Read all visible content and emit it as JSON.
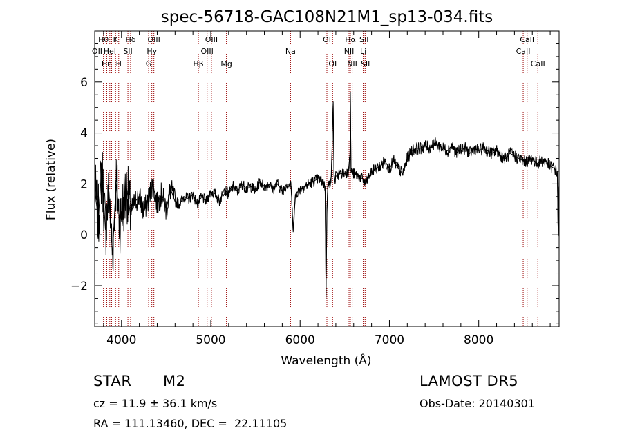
{
  "chart_data": {
    "type": "line",
    "title": "spec-56718-GAC108N21M1_sp13-034.fits",
    "xlabel": "Wavelength (Å)",
    "ylabel": "Flux (relative)",
    "xlim": [
      3700,
      8900
    ],
    "ylim": [
      -3.6,
      8.0
    ],
    "xticks": [
      4000,
      5000,
      6000,
      7000,
      8000
    ],
    "yticks": [
      -2,
      0,
      2,
      4,
      6
    ],
    "grid": false,
    "line_color": "#000000",
    "line_marker_color": "#990000",
    "series": [
      {
        "x": [
          3700,
          3740,
          3780,
          3820,
          3860,
          3900,
          3940,
          3980,
          4020,
          4060,
          4100,
          4150,
          4200,
          4250,
          4300,
          4350,
          4400,
          4450,
          4500,
          4550,
          4600,
          4650,
          4700,
          4750,
          4800,
          4850,
          4900,
          4950,
          5000,
          5050,
          5100,
          5150,
          5200,
          5250,
          5300,
          5350,
          5400,
          5450,
          5500,
          5550,
          5600,
          5650,
          5700,
          5750,
          5800,
          5850,
          5900,
          5920,
          5950,
          6000,
          6050,
          6100,
          6150,
          6200,
          6250,
          6280,
          6290,
          6300,
          6310,
          6330,
          6350,
          6370,
          6380,
          6390,
          6400,
          6450,
          6500,
          6540,
          6560,
          6563,
          6570,
          6600,
          6650,
          6700,
          6730,
          6750,
          6800,
          6850,
          6900,
          6950,
          7000,
          7050,
          7100,
          7150,
          7200,
          7250,
          7300,
          7350,
          7400,
          7450,
          7500,
          7550,
          7600,
          7650,
          7700,
          7750,
          7800,
          7850,
          7900,
          7950,
          8000,
          8050,
          8100,
          8150,
          8200,
          8250,
          8300,
          8350,
          8400,
          8450,
          8500,
          8550,
          8600,
          8650,
          8700,
          8750,
          8800,
          8850,
          8880,
          8890,
          8900
        ],
        "y": [
          1.8,
          0.6,
          2.7,
          0.2,
          1.7,
          -0.8,
          2.1,
          0.5,
          1.2,
          1.8,
          0.8,
          1.3,
          1.5,
          0.9,
          1.4,
          2.0,
          1.2,
          1.6,
          1.0,
          1.8,
          1.3,
          1.2,
          1.5,
          1.4,
          1.6,
          1.2,
          1.5,
          1.3,
          1.7,
          1.6,
          1.3,
          1.8,
          1.6,
          1.9,
          1.7,
          2.0,
          1.8,
          1.9,
          1.7,
          2.1,
          1.9,
          2.0,
          1.8,
          2.0,
          1.7,
          2.0,
          1.9,
          0.2,
          1.6,
          1.8,
          1.9,
          2.0,
          2.1,
          2.2,
          2.1,
          1.9,
          -2.4,
          1.0,
          1.9,
          2.0,
          2.3,
          5.2,
          2.3,
          2.1,
          2.3,
          2.4,
          2.4,
          2.5,
          3.2,
          5.6,
          2.5,
          2.4,
          2.3,
          2.2,
          2.0,
          2.1,
          2.5,
          2.6,
          2.7,
          2.9,
          2.6,
          2.9,
          2.6,
          2.4,
          3.0,
          3.3,
          3.4,
          3.4,
          3.5,
          3.4,
          3.6,
          3.5,
          3.4,
          3.3,
          3.5,
          3.2,
          3.4,
          3.4,
          3.2,
          3.4,
          3.3,
          3.4,
          3.3,
          3.2,
          3.3,
          3.1,
          3.0,
          3.2,
          3.1,
          3.0,
          2.9,
          2.9,
          3.0,
          2.8,
          2.9,
          2.9,
          2.7,
          2.6,
          2.4,
          0.0,
          2.3
        ]
      }
    ],
    "line_markers": [
      {
        "x": 3727,
        "label": "OII",
        "row": 2
      },
      {
        "x": 3798,
        "label": "Hθ",
        "row": 1
      },
      {
        "x": 3835,
        "label": "Hη",
        "row": 3
      },
      {
        "x": 3869,
        "label": "HeI",
        "row": 2
      },
      {
        "x": 3889,
        "label": "",
        "row": 0
      },
      {
        "x": 3934,
        "label": "K",
        "row": 1
      },
      {
        "x": 3969,
        "label": "H",
        "row": 3
      },
      {
        "x": 4072,
        "label": "SII",
        "row": 2
      },
      {
        "x": 4102,
        "label": "Hδ",
        "row": 1
      },
      {
        "x": 4304,
        "label": "G",
        "row": 3
      },
      {
        "x": 4340,
        "label": "Hγ",
        "row": 2
      },
      {
        "x": 4363,
        "label": "OIII",
        "row": 1
      },
      {
        "x": 4861,
        "label": "Hβ",
        "row": 3
      },
      {
        "x": 4959,
        "label": "OIII",
        "row": 2
      },
      {
        "x": 5007,
        "label": "OIII",
        "row": 1
      },
      {
        "x": 5175,
        "label": "Mg",
        "row": 3
      },
      {
        "x": 5893,
        "label": "Na",
        "row": 2
      },
      {
        "x": 6300,
        "label": "OI",
        "row": 1
      },
      {
        "x": 6364,
        "label": "OI",
        "row": 3
      },
      {
        "x": 6548,
        "label": "NII",
        "row": 2
      },
      {
        "x": 6563,
        "label": "Hα",
        "row": 1
      },
      {
        "x": 6583,
        "label": "NII",
        "row": 3
      },
      {
        "x": 6707,
        "label": "Li",
        "row": 2
      },
      {
        "x": 6716,
        "label": "SII",
        "row": 1
      },
      {
        "x": 6731,
        "label": "SII",
        "row": 3
      },
      {
        "x": 8498,
        "label": "CaII",
        "row": 2
      },
      {
        "x": 8542,
        "label": "CaII",
        "row": 1
      },
      {
        "x": 8662,
        "label": "CaII",
        "row": 3
      }
    ]
  },
  "info": {
    "object_class": "STAR",
    "subclass": "M2",
    "survey": "LAMOST DR5",
    "cz": "cz = 11.9 ± 36.1 km/s",
    "obs_date": "Obs-Date: 20140301",
    "coords": "RA = 111.13460, DEC =  22.11105"
  }
}
